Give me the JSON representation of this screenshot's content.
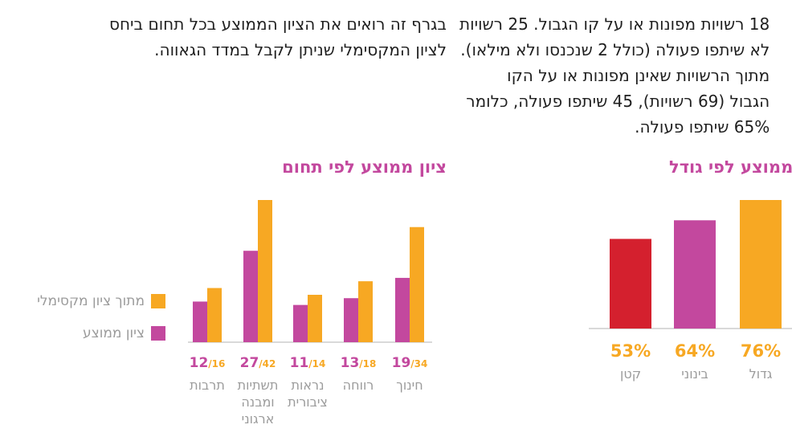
{
  "text": {
    "right_paragraph": [
      "18 רשויות מפונות או על קו הגבול. 25 רשויות",
      "לא שיתפו פעולה (כולל 2 שנכנסו ולא מילאו).",
      "מתוך הרשויות שאינן מפונות או על הקו",
      "הגבול (69 רשויות), 45 שיתפו פעולה, כלומר",
      "65% שיתפו פעולה."
    ],
    "left_paragraph": [
      "בגרף זה רואים את הציון הממוצע בכל תחום ביחס",
      "לציון המקסימלי שניתן לקבל במדד הגאווה."
    ]
  },
  "chart_data": [
    {
      "type": "bar",
      "title": "ציון ממוצע לפי תחום",
      "categories": [
        "חינוך",
        "רווחה",
        "נראות ציבורית",
        "תשתיות ומבנה ארגוני",
        "תרבות"
      ],
      "category_lines": [
        [
          "חינוך"
        ],
        [
          "רווחה"
        ],
        [
          "נראות",
          "ציבורית"
        ],
        [
          "תשתיות",
          "ומבנה",
          "ארגוני"
        ],
        [
          "תרבות"
        ]
      ],
      "series": [
        {
          "name": "ציון ממוצע",
          "values": [
            19,
            13,
            11,
            27,
            12
          ],
          "color": "#c3489e"
        },
        {
          "name": "מתוך ציון מקסימלי",
          "values": [
            34,
            18,
            14,
            42,
            16
          ],
          "color": "#f7a823"
        }
      ],
      "ylim": [
        0,
        42
      ],
      "grid": false,
      "legend_position": "left"
    },
    {
      "type": "bar",
      "title": "ממוצע לפי גודל",
      "categories": [
        "גדול",
        "בינוני",
        "קטן"
      ],
      "values": [
        76,
        64,
        53
      ],
      "value_labels": [
        "76%",
        "64%",
        "53%"
      ],
      "colors": [
        "#f7a823",
        "#c3489e",
        "#d4202e"
      ],
      "ylim": [
        0,
        76
      ]
    }
  ],
  "colors": {
    "accent_pink": "#c3489e",
    "accent_orange": "#f7a823",
    "accent_red": "#d4202e",
    "muted_text": "#9b9b9b",
    "axis": "#d9d9d9"
  }
}
